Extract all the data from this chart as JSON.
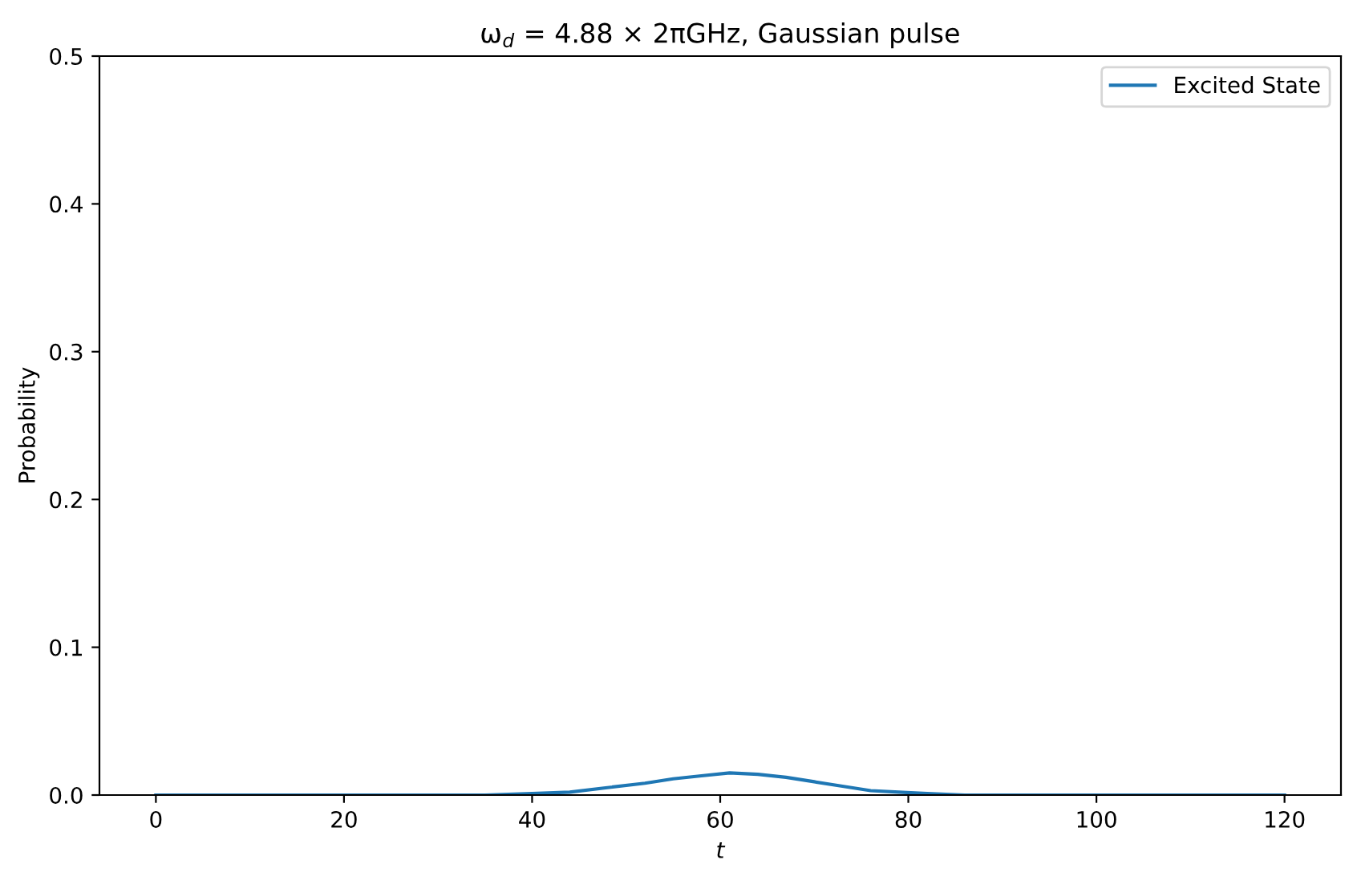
{
  "chart_data": {
    "type": "line",
    "title": "ω$_{d}$ = 4.88 × 2πGHz, Gaussian pulse",
    "xlabel": "t",
    "ylabel": "Probability",
    "series": [
      {
        "name": "Excited State",
        "color": "#1f77b4",
        "x": [
          0,
          10,
          20,
          30,
          35,
          40,
          44,
          48,
          52,
          55,
          58,
          61,
          64,
          67,
          70,
          73,
          76,
          79,
          82,
          86,
          90,
          100,
          110,
          120
        ],
        "values": [
          0,
          0,
          0,
          0,
          0,
          0.001,
          0.002,
          0.005,
          0.008,
          0.011,
          0.013,
          0.015,
          0.014,
          0.012,
          0.009,
          0.006,
          0.003,
          0.002,
          0.001,
          0,
          0,
          0,
          0,
          0
        ]
      }
    ],
    "xlim": [
      -6,
      126
    ],
    "xticks": [
      0,
      20,
      40,
      60,
      80,
      100,
      120
    ],
    "ylim": [
      0,
      0.5
    ],
    "yticks": [
      {
        "value": 0,
        "label": "0.0"
      },
      0.1,
      0.2,
      0.3,
      0.4,
      0.5
    ],
    "legend": "top right",
    "grid": false,
    "marker": "none",
    "line_style": "solid"
  }
}
